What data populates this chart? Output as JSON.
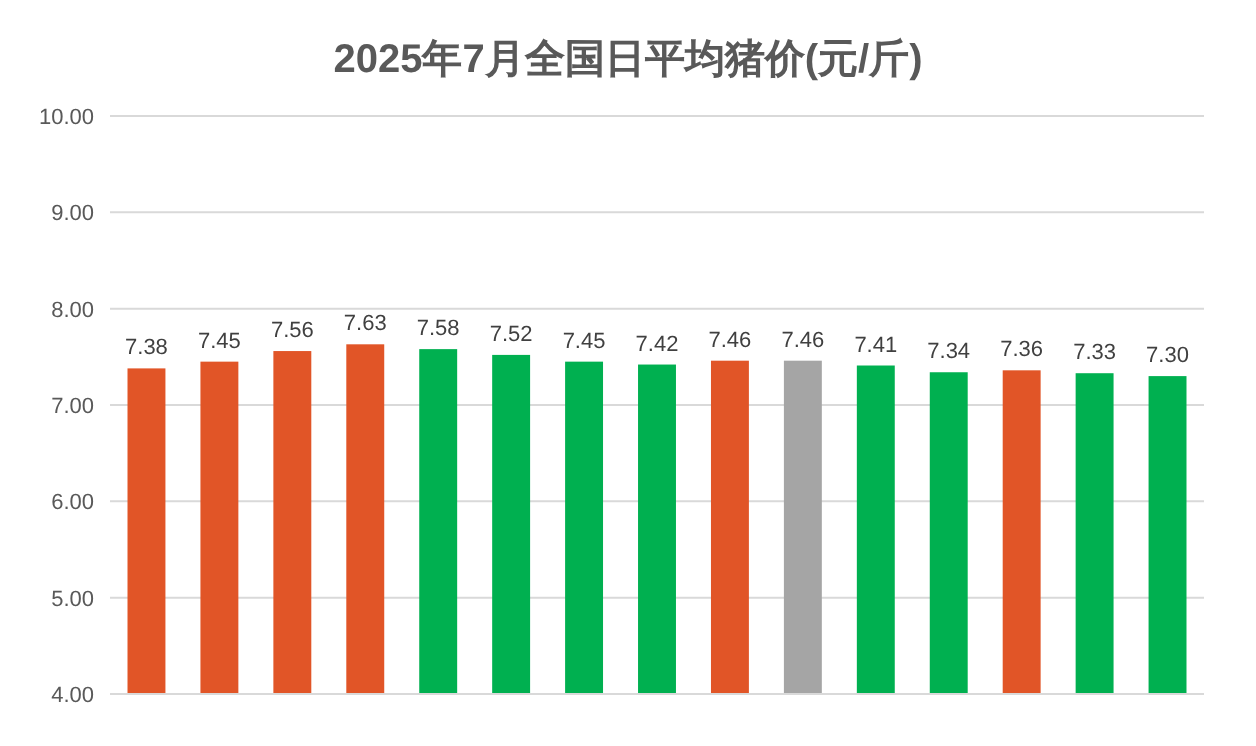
{
  "chart_data": {
    "type": "bar",
    "title": "2025年7月全国日平均猪价(元/斤)",
    "categories": [
      null,
      null,
      null,
      null,
      null,
      null,
      null,
      null,
      null,
      null,
      null,
      null,
      null,
      null,
      null
    ],
    "values": [
      7.38,
      7.45,
      7.56,
      7.63,
      7.58,
      7.52,
      7.45,
      7.42,
      7.46,
      7.46,
      7.41,
      7.34,
      7.36,
      7.33,
      7.3
    ],
    "colors": [
      "#e15527",
      "#e15527",
      "#e15527",
      "#e15527",
      "#00b050",
      "#00b050",
      "#00b050",
      "#00b050",
      "#e15527",
      "#a5a5a5",
      "#00b050",
      "#00b050",
      "#e15527",
      "#00b050",
      "#00b050"
    ],
    "ylim": [
      4,
      10
    ],
    "yticks": [
      {
        "value": 4,
        "label": "4.00"
      },
      {
        "value": 5,
        "label": "5.00"
      },
      {
        "value": 6,
        "label": "6.00"
      },
      {
        "value": 7,
        "label": "7.00"
      },
      {
        "value": 8,
        "label": "8.00"
      },
      {
        "value": 9,
        "label": "9.00"
      },
      {
        "value": 10,
        "label": "10.00"
      }
    ],
    "value_labels": [
      "7.38",
      "7.45",
      "7.56",
      "7.63",
      "7.58",
      "7.52",
      "7.45",
      "7.42",
      "7.46",
      "7.46",
      "7.41",
      "7.34",
      "7.36",
      "7.33",
      "7.30"
    ],
    "grid": "y"
  }
}
